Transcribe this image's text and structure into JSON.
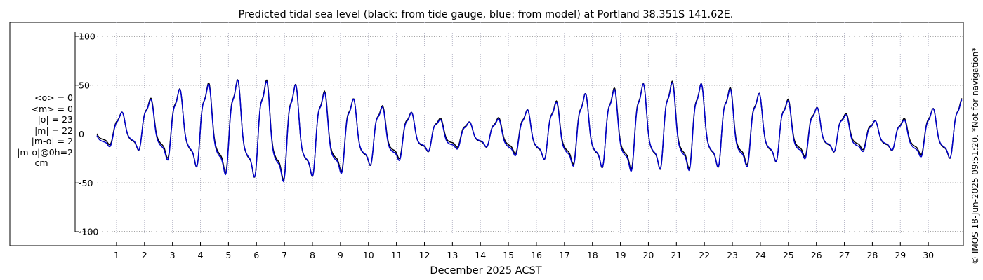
{
  "chart_data": {
    "type": "line",
    "title": "Predicted tidal sea level (black: from tide gauge, blue: from model) at Portland 38.351S 141.62E.",
    "xlabel": "December 2025 ACST",
    "ylabel": "",
    "ylim": [
      -100,
      100
    ],
    "yticks": [
      -100,
      -50,
      0,
      50,
      100
    ],
    "xlim": [
      0.3,
      31.2
    ],
    "xticks": [
      1,
      2,
      3,
      4,
      5,
      6,
      7,
      8,
      9,
      10,
      11,
      12,
      13,
      14,
      15,
      16,
      17,
      18,
      19,
      20,
      21,
      22,
      23,
      24,
      25,
      26,
      27,
      28,
      29,
      30
    ],
    "grid": true,
    "series_style": [
      {
        "name": "tide gauge",
        "color": "#000000"
      },
      {
        "name": "model",
        "color": "#0000cc"
      }
    ],
    "tide_envelope": {
      "days": [
        0.3,
        1,
        2,
        3,
        4,
        5,
        6,
        7,
        8,
        9,
        10,
        11,
        12,
        13,
        14,
        15,
        16,
        17,
        18,
        19,
        20,
        21,
        22,
        23,
        24,
        25,
        26,
        27,
        28,
        29,
        30,
        31.2
      ],
      "high": [
        8,
        20,
        35,
        45,
        52,
        56,
        57,
        54,
        48,
        40,
        33,
        26,
        20,
        14,
        12,
        20,
        28,
        37,
        44,
        49,
        53,
        55,
        52,
        48,
        42,
        36,
        28,
        22,
        14,
        15,
        25,
        37
      ],
      "low": [
        -10,
        -15,
        -22,
        -32,
        -42,
        -48,
        -53,
        -55,
        -51,
        -45,
        -38,
        -30,
        -22,
        -16,
        -14,
        -22,
        -29,
        -35,
        -40,
        -43,
        -44,
        -43,
        -42,
        -40,
        -36,
        -32,
        -25,
        -20,
        -18,
        -20,
        -27,
        -31
      ]
    },
    "stats": [
      "<o> = 0",
      "<m> = 0",
      "|o| = 23",
      "|m| = 22",
      "|m-o| = 2",
      "|m-o|@0h=2",
      "cm"
    ],
    "side_note": "© IMOS 18-Jun-2025 09:51:20. *Not for navigation*"
  }
}
